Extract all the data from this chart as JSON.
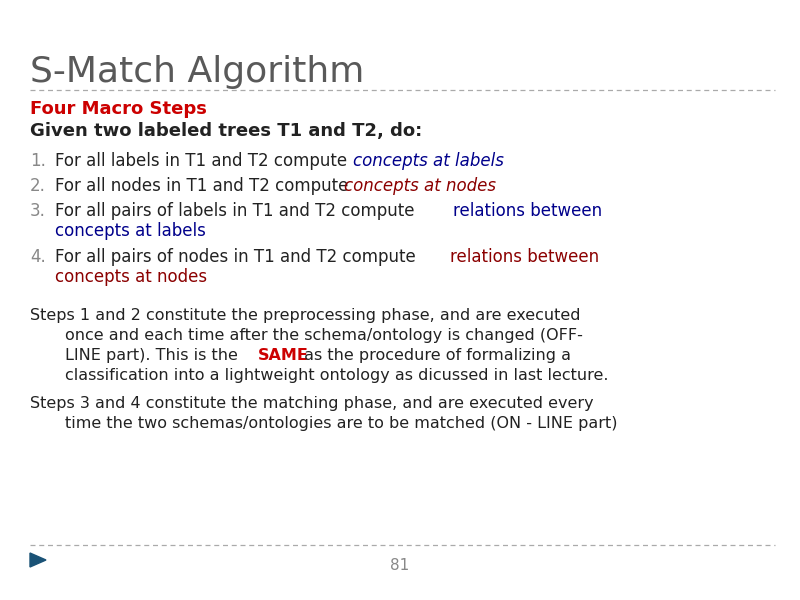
{
  "bg_color": "#ffffff",
  "title": "S-Match Algorithm",
  "title_color": "#595959",
  "title_fontsize": 26,
  "divider_color": "#aaaaaa",
  "heading_color": "#cc0000",
  "heading_text": "Four Macro Steps",
  "heading_fontsize": 13,
  "given_text": "Given two labeled trees T1 and T2, do:",
  "given_fontsize": 13,
  "item_fontsize": 12,
  "num_color": "#888888",
  "black_color": "#222222",
  "blue_color": "#00008b",
  "darkred_color": "#8b0000",
  "red_color": "#cc0000",
  "para_fontsize": 11.5,
  "page_num": "81",
  "page_color": "#888888",
  "arrow_color": "#1a5276"
}
